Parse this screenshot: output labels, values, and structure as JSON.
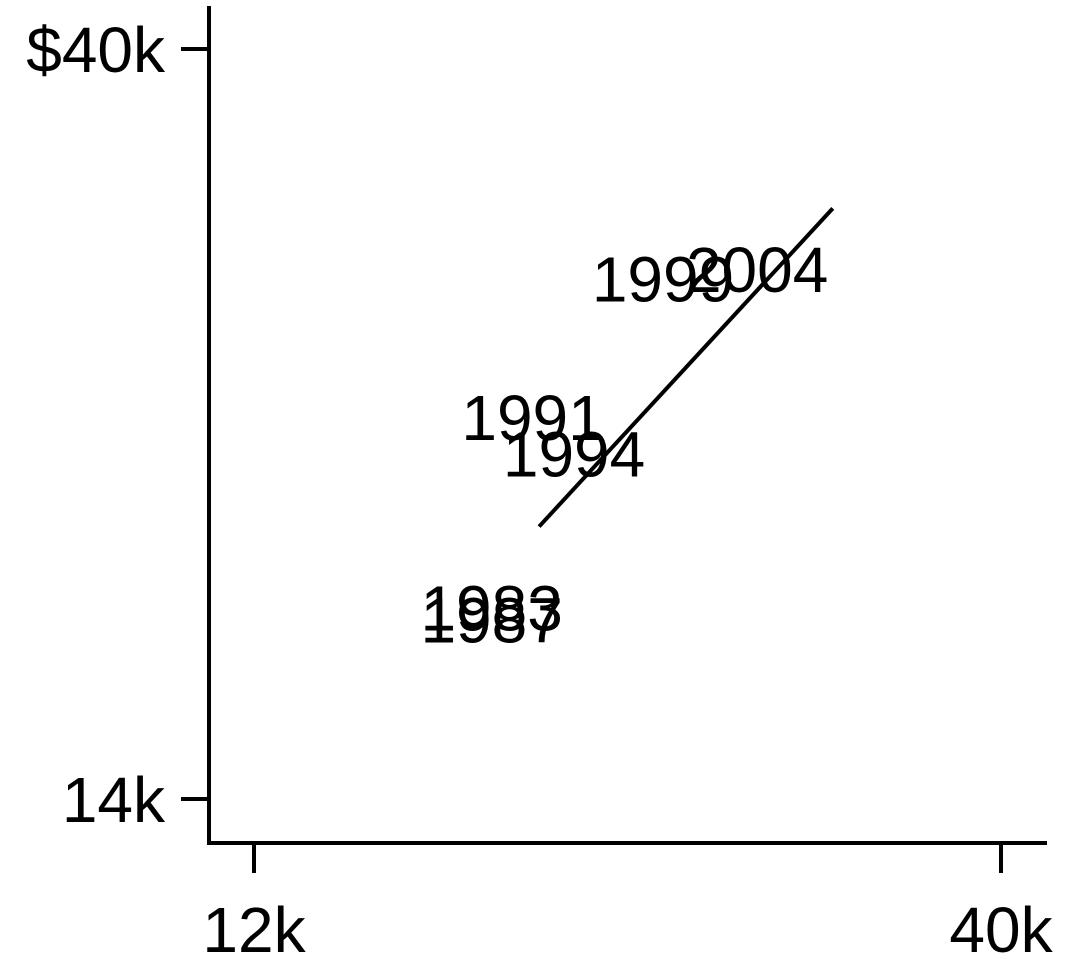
{
  "chart_data": {
    "type": "scatter",
    "title": "",
    "xlabel": "",
    "ylabel": "",
    "x_scale": "log",
    "y_scale": "log",
    "x_ticks": [
      {
        "value": 12000,
        "label": "12k"
      },
      {
        "value": 40000,
        "label": "40k"
      }
    ],
    "y_ticks": [
      {
        "value": 14000,
        "label": "14k"
      },
      {
        "value": 40000,
        "label": "$40k"
      }
    ],
    "points": [
      {
        "label": "1983",
        "x": 17600,
        "y": 18300
      },
      {
        "label": "1987",
        "x": 17600,
        "y": 18000
      },
      {
        "label": "1991",
        "x": 18800,
        "y": 23900
      },
      {
        "label": "1994",
        "x": 20100,
        "y": 22700
      },
      {
        "label": "1999",
        "x": 23200,
        "y": 29000
      },
      {
        "label": "2004",
        "x": 27000,
        "y": 29400
      }
    ],
    "fit_line": {
      "x": [
        19000,
        30500
      ],
      "y": [
        20500,
        32000
      ]
    },
    "grid": false,
    "legend": "none",
    "colors": {
      "ink": "#000000",
      "background": "#ffffff"
    }
  }
}
